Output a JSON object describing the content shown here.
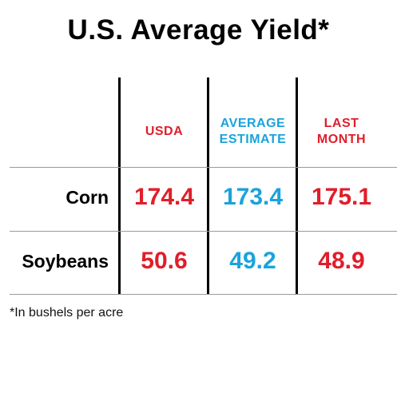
{
  "colors": {
    "red": "#e01e2a",
    "blue": "#1aa3dc",
    "black": "#000000"
  },
  "chart_data": {
    "type": "table",
    "title": "U.S. Average Yield*",
    "columns": [
      {
        "label_lines": [
          "USDA"
        ],
        "color": "#e01e2a"
      },
      {
        "label_lines": [
          "AVERAGE",
          "ESTIMATE"
        ],
        "color": "#1aa3dc"
      },
      {
        "label_lines": [
          "LAST",
          "MONTH"
        ],
        "color": "#e01e2a"
      }
    ],
    "rows": [
      {
        "label": "Corn",
        "values": [
          "174.4",
          "173.4",
          "175.1"
        ]
      },
      {
        "label": "Soybeans",
        "values": [
          "50.6",
          "49.2",
          "48.9"
        ]
      }
    ],
    "footnote": "*In bushels per acre"
  }
}
